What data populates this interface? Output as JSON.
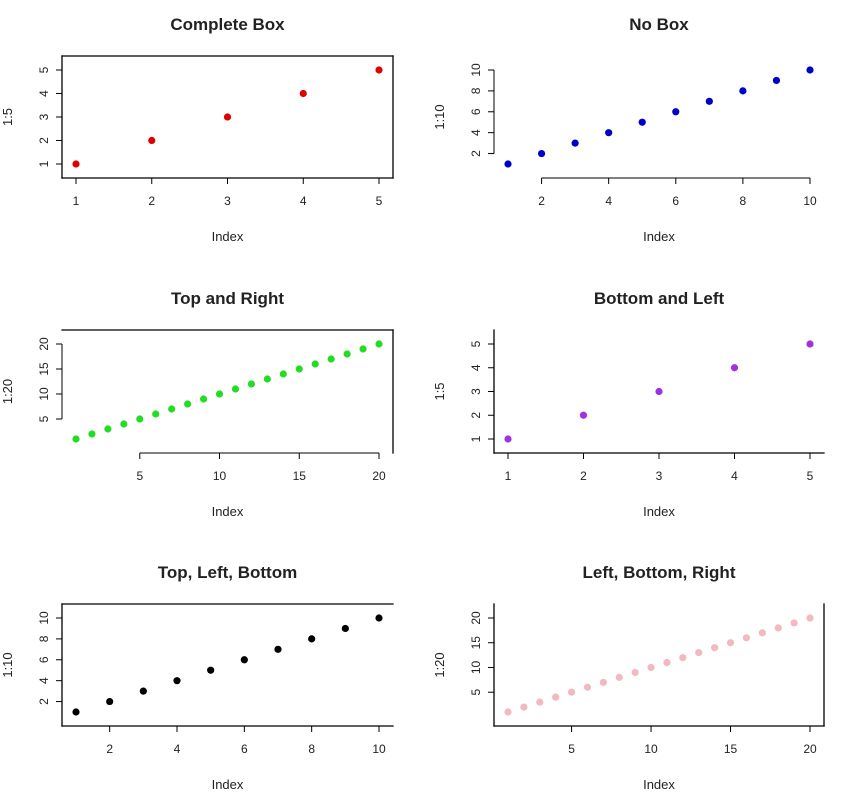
{
  "chart_data": [
    {
      "type": "scatter",
      "title": "Complete Box",
      "xlabel": "Index",
      "ylabel": "1:5",
      "x": [
        1,
        2,
        3,
        4,
        5
      ],
      "y": [
        1,
        2,
        3,
        4,
        5
      ],
      "xlim": [
        1,
        5
      ],
      "ylim": [
        1,
        5
      ],
      "xticks": [
        1,
        2,
        3,
        4,
        5
      ],
      "yticks": [
        1,
        2,
        3,
        4,
        5
      ],
      "color": "#e00000",
      "box_sides": [
        "bottom",
        "left",
        "top",
        "right"
      ]
    },
    {
      "type": "scatter",
      "title": "No Box",
      "xlabel": "Index",
      "ylabel": "1:10",
      "x": [
        1,
        2,
        3,
        4,
        5,
        6,
        7,
        8,
        9,
        10
      ],
      "y": [
        1,
        2,
        3,
        4,
        5,
        6,
        7,
        8,
        9,
        10
      ],
      "xlim": [
        1,
        10
      ],
      "ylim": [
        1,
        10
      ],
      "xticks": [
        2,
        4,
        6,
        8,
        10
      ],
      "yticks": [
        2,
        4,
        6,
        8,
        10
      ],
      "color": "#0000cc",
      "box_sides": []
    },
    {
      "type": "scatter",
      "title": "Top and Right",
      "xlabel": "Index",
      "ylabel": "1:20",
      "x": [
        1,
        2,
        3,
        4,
        5,
        6,
        7,
        8,
        9,
        10,
        11,
        12,
        13,
        14,
        15,
        16,
        17,
        18,
        19,
        20
      ],
      "y": [
        1,
        2,
        3,
        4,
        5,
        6,
        7,
        8,
        9,
        10,
        11,
        12,
        13,
        14,
        15,
        16,
        17,
        18,
        19,
        20
      ],
      "xlim": [
        1,
        20
      ],
      "ylim": [
        1,
        20
      ],
      "xticks": [
        5,
        10,
        15,
        20
      ],
      "yticks": [
        5,
        10,
        15,
        20
      ],
      "color": "#22dd22",
      "box_sides": [
        "top",
        "right"
      ]
    },
    {
      "type": "scatter",
      "title": "Bottom and Left",
      "xlabel": "Index",
      "ylabel": "1:5",
      "x": [
        1,
        2,
        3,
        4,
        5
      ],
      "y": [
        1,
        2,
        3,
        4,
        5
      ],
      "xlim": [
        1,
        5
      ],
      "ylim": [
        1,
        5
      ],
      "xticks": [
        1,
        2,
        3,
        4,
        5
      ],
      "yticks": [
        1,
        2,
        3,
        4,
        5
      ],
      "color": "#a030e0",
      "box_sides": [
        "bottom",
        "left"
      ]
    },
    {
      "type": "scatter",
      "title": "Top, Left, Bottom",
      "xlabel": "Index",
      "ylabel": "1:10",
      "x": [
        1,
        2,
        3,
        4,
        5,
        6,
        7,
        8,
        9,
        10
      ],
      "y": [
        1,
        2,
        3,
        4,
        5,
        6,
        7,
        8,
        9,
        10
      ],
      "xlim": [
        1,
        10
      ],
      "ylim": [
        1,
        10
      ],
      "xticks": [
        2,
        4,
        6,
        8,
        10
      ],
      "yticks": [
        2,
        4,
        6,
        8,
        10
      ],
      "color": "#000000",
      "box_sides": [
        "top",
        "left",
        "bottom"
      ]
    },
    {
      "type": "scatter",
      "title": "Left, Bottom, Right",
      "xlabel": "Index",
      "ylabel": "1:20",
      "x": [
        1,
        2,
        3,
        4,
        5,
        6,
        7,
        8,
        9,
        10,
        11,
        12,
        13,
        14,
        15,
        16,
        17,
        18,
        19,
        20
      ],
      "y": [
        1,
        2,
        3,
        4,
        5,
        6,
        7,
        8,
        9,
        10,
        11,
        12,
        13,
        14,
        15,
        16,
        17,
        18,
        19,
        20
      ],
      "xlim": [
        1,
        20
      ],
      "ylim": [
        1,
        20
      ],
      "xticks": [
        5,
        10,
        15,
        20
      ],
      "yticks": [
        5,
        10,
        15,
        20
      ],
      "color": "#f4b8c0",
      "box_sides": [
        "left",
        "bottom",
        "right"
      ]
    }
  ]
}
